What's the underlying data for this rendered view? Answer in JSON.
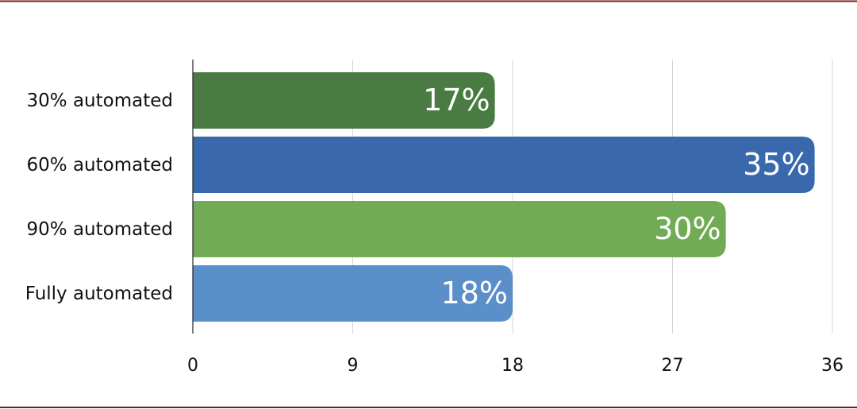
{
  "chart_data": {
    "type": "bar",
    "orientation": "horizontal",
    "categories": [
      "30% automated",
      "60% automated",
      "90% automated",
      "Fully automated"
    ],
    "values": [
      17,
      35,
      30,
      18
    ],
    "value_labels": [
      "17%",
      "35%",
      "30%",
      "18%"
    ],
    "colors": [
      "#4a7b43",
      "#3968ad",
      "#72ab55",
      "#5b8fc9"
    ],
    "xlim": [
      0,
      36
    ],
    "xticks": [
      0,
      9,
      18,
      27,
      36
    ],
    "grid": true
  }
}
